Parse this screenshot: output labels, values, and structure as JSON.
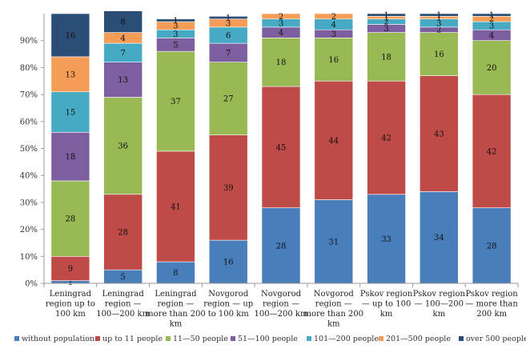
{
  "chart_data": {
    "type": "stacked-bar-100",
    "categories": [
      "Leningrad region up to 100 km",
      "Leningrad region — 100—200 km",
      "Leningrad region — more than 200 km",
      "Novgorod region — up to 100 km",
      "Novgorod region — 100—200 km",
      "Novgorod region — more than 200 km",
      "Pskov region — up to 100 km",
      "Pskov region — 100—200 km",
      "Pskov region — more than 200 km"
    ],
    "category_lines": [
      [
        "Leningrad",
        "region up to",
        "100 km"
      ],
      [
        "Leningrad",
        "region —",
        "100—200 km"
      ],
      [
        "Leningrad",
        "region —",
        "more than 200",
        "km"
      ],
      [
        "Novgorod",
        "region — up",
        "to 100 km"
      ],
      [
        "Novgorod",
        "region —",
        "100—200 km"
      ],
      [
        "Novgorod",
        "region —",
        "more than 200",
        "km"
      ],
      [
        "Pskov region",
        "— up to 100",
        "km"
      ],
      [
        "Pskov region",
        "— 100—200",
        "km"
      ],
      [
        "Pskov region",
        "— more than",
        "200 km"
      ]
    ],
    "series": [
      {
        "name": "without population",
        "color": "#4a7ebb",
        "values": [
          1,
          5,
          8,
          16,
          28,
          31,
          33,
          34,
          28
        ]
      },
      {
        "name": "up to 11 people",
        "color": "#be4b48",
        "values": [
          9,
          28,
          41,
          39,
          45,
          44,
          42,
          43,
          42
        ]
      },
      {
        "name": "11—50 people",
        "color": "#98b954",
        "values": [
          28,
          36,
          37,
          27,
          18,
          16,
          18,
          16,
          20
        ]
      },
      {
        "name": "51—100 people",
        "color": "#7d5fa0",
        "values": [
          18,
          13,
          5,
          7,
          4,
          3,
          3,
          2,
          4
        ]
      },
      {
        "name": "101—200 people",
        "color": "#46aac4",
        "values": [
          15,
          7,
          3,
          6,
          3,
          4,
          2,
          3,
          3
        ]
      },
      {
        "name": "201—500 people",
        "color": "#f59d56",
        "values": [
          13,
          4,
          3,
          3,
          2,
          2,
          1,
          1,
          2
        ]
      },
      {
        "name": "over 500 people",
        "color": "#2c4d75",
        "values": [
          16,
          8,
          1,
          1,
          0,
          0,
          1,
          1,
          1
        ]
      }
    ],
    "ytick_labels": [
      "0%",
      "10%",
      "20%",
      "30%",
      "40%",
      "50%",
      "60%",
      "70%",
      "80%",
      "90%"
    ],
    "ylim": [
      0,
      100
    ],
    "legend_position": "bottom",
    "title": "",
    "xlabel": "",
    "ylabel": ""
  }
}
